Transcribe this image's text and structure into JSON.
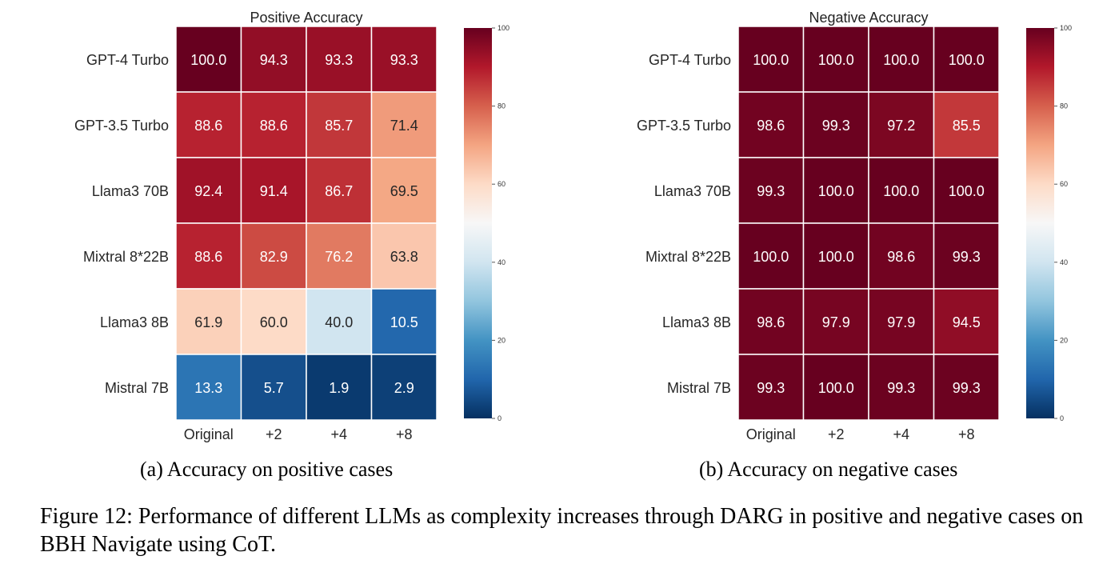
{
  "figure": {
    "caption": "Figure 12: Performance of different LLMs as complexity increases through DARG in positive and negative cases on BBH Navigate using CoT.",
    "subcaptions": [
      "(a) Accuracy on positive cases",
      "(b) Accuracy on negative cases"
    ]
  },
  "chart_data": [
    {
      "type": "heatmap",
      "title": "Positive Accuracy",
      "x_categories": [
        "Original",
        "+2",
        "+4",
        "+8"
      ],
      "y_categories": [
        "GPT-4 Turbo",
        "GPT-3.5 Turbo",
        "Llama3 70B",
        "Mixtral 8*22B",
        "Llama3 8B",
        "Mistral 7B"
      ],
      "values": [
        [
          100.0,
          94.3,
          93.3,
          93.3
        ],
        [
          88.6,
          88.6,
          85.7,
          71.4
        ],
        [
          92.4,
          91.4,
          86.7,
          69.5
        ],
        [
          88.6,
          82.9,
          76.2,
          63.8
        ],
        [
          61.9,
          60.0,
          40.0,
          10.5
        ],
        [
          13.3,
          5.7,
          1.9,
          2.9
        ]
      ],
      "colorbar": {
        "range": [
          0,
          100
        ],
        "ticks": [
          0,
          20,
          40,
          60,
          80,
          100
        ],
        "colormap": "RdBu_r"
      }
    },
    {
      "type": "heatmap",
      "title": "Negative Accuracy",
      "x_categories": [
        "Original",
        "+2",
        "+4",
        "+8"
      ],
      "y_categories": [
        "GPT-4 Turbo",
        "GPT-3.5 Turbo",
        "Llama3 70B",
        "Mixtral 8*22B",
        "Llama3 8B",
        "Mistral 7B"
      ],
      "values": [
        [
          100.0,
          100.0,
          100.0,
          100.0
        ],
        [
          98.6,
          99.3,
          97.2,
          85.5
        ],
        [
          99.3,
          100.0,
          100.0,
          100.0
        ],
        [
          100.0,
          100.0,
          98.6,
          99.3
        ],
        [
          98.6,
          97.9,
          97.9,
          94.5
        ],
        [
          99.3,
          100.0,
          99.3,
          99.3
        ]
      ],
      "colorbar": {
        "range": [
          0,
          100
        ],
        "ticks": [
          0,
          20,
          40,
          60,
          80,
          100
        ],
        "colormap": "RdBu_r"
      }
    }
  ]
}
